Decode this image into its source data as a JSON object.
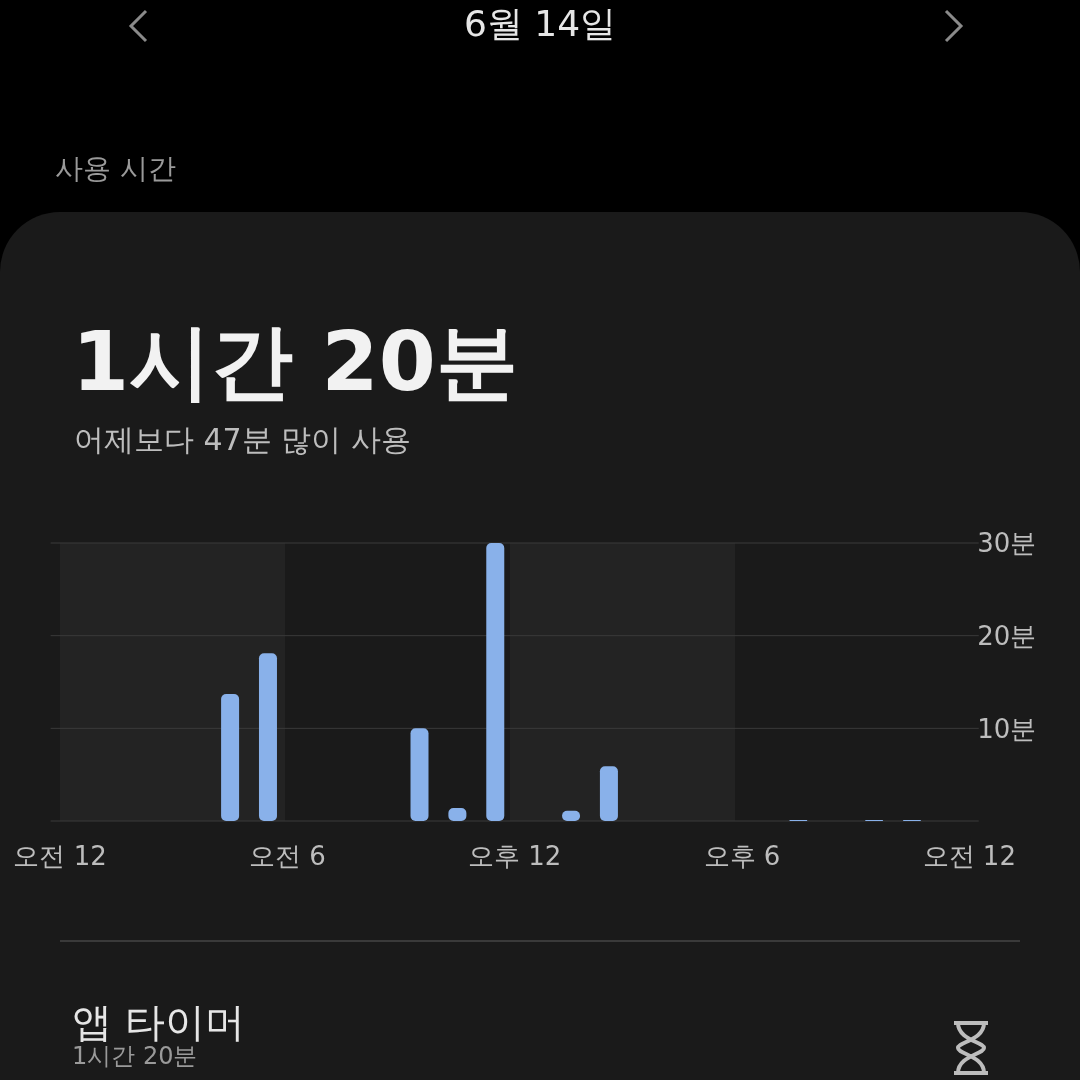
{
  "chart_data": {
    "type": "bar",
    "title": "1시간 20분",
    "subtitle": "어제보다 47분 많이 사용",
    "annotations": [
      "6월 14일",
      "사용 시간",
      "앱 타이머",
      "1시간 20분"
    ],
    "categories": [
      "오전 12",
      null,
      null,
      null,
      null,
      null,
      null,
      null,
      null,
      null,
      null,
      null,
      "오전 6",
      null,
      null,
      null,
      null,
      null,
      null,
      null,
      null,
      null,
      null,
      null,
      "오후 12",
      null,
      null,
      null,
      null,
      null,
      null,
      null,
      null,
      null,
      null,
      null,
      "오후 6",
      null,
      null,
      null,
      null,
      null,
      null,
      null,
      null,
      null,
      null,
      null,
      "오전 12"
    ],
    "values": [
      null,
      null,
      null,
      null,
      null,
      null,
      null,
      null,
      null,
      13.7,
      null,
      18.1,
      null,
      null,
      null,
      null,
      null,
      null,
      null,
      10,
      null,
      1.4,
      null,
      30,
      null,
      null,
      null,
      1.1,
      null,
      5.9,
      null,
      null,
      null,
      null,
      null,
      null,
      null,
      null,
      null,
      0.1,
      null,
      null,
      null,
      0.1,
      null,
      0.1,
      null,
      null,
      null
    ],
    "color": "#89b1ea",
    "ylim": [
      0,
      30
    ],
    "yticks": [
      {
        "value": 0,
        "label": null
      },
      {
        "value": 10,
        "label": "10분"
      },
      {
        "value": 20,
        "label": "20분"
      },
      {
        "value": 30,
        "label": "30분"
      }
    ],
    "grid": "y",
    "legend": false
  }
}
